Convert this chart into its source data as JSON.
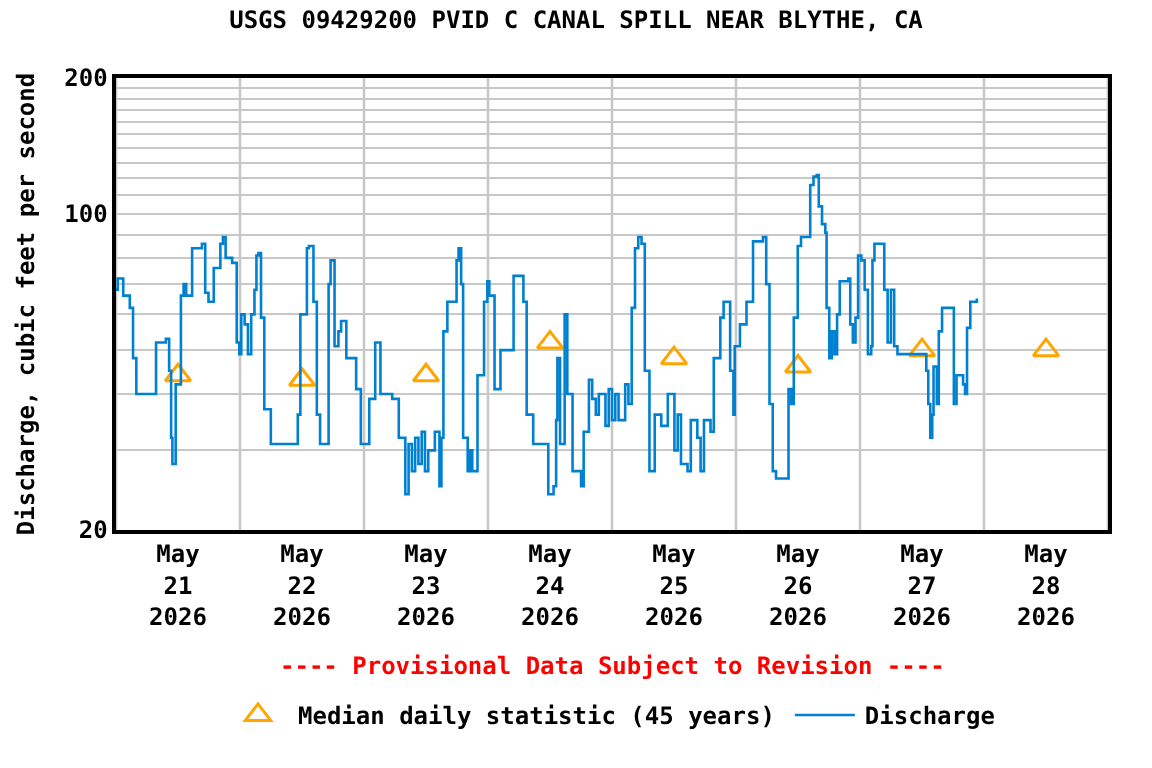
{
  "chart_data": {
    "type": "step",
    "title": "USGS 09429200 PVID C CANAL SPILL NEAR BLYTHE, CA",
    "ylabel": "Discharge, cubic feet per second",
    "log": "y",
    "grid": true,
    "legend": "bottom",
    "xlim": [
      "2026-05-21T00:00",
      "2026-05-29T00:00"
    ],
    "xticks": [
      {
        "value": "2026-05-21T00:00",
        "label": null
      },
      {
        "value": "2026-05-21T12:00",
        "label": "May\n21\n2026"
      },
      {
        "value": "2026-05-22T00:00",
        "label": null
      },
      {
        "value": "2026-05-22T12:00",
        "label": "May\n22\n2026"
      },
      {
        "value": "2026-05-23T00:00",
        "label": null
      },
      {
        "value": "2026-05-23T12:00",
        "label": "May\n23\n2026"
      },
      {
        "value": "2026-05-24T00:00",
        "label": null
      },
      {
        "value": "2026-05-24T12:00",
        "label": "May\n24\n2026"
      },
      {
        "value": "2026-05-25T00:00",
        "label": null
      },
      {
        "value": "2026-05-25T12:00",
        "label": "May\n25\n2026"
      },
      {
        "value": "2026-05-26T00:00",
        "label": null
      },
      {
        "value": "2026-05-26T12:00",
        "label": "May\n26\n2026"
      },
      {
        "value": "2026-05-27T00:00",
        "label": null
      },
      {
        "value": "2026-05-27T12:00",
        "label": "May\n27\n2026"
      },
      {
        "value": "2026-05-28T00:00",
        "label": null
      },
      {
        "value": "2026-05-28T12:00",
        "label": "May\n28\n2026"
      },
      {
        "value": "2026-05-29T00:00",
        "label": null
      }
    ],
    "ylim": [
      20,
      200
    ],
    "yticks": [
      20,
      {
        "value": 30,
        "label": null
      },
      {
        "value": 40,
        "label": null
      },
      {
        "value": 50,
        "label": null
      },
      {
        "value": 60,
        "label": null
      },
      {
        "value": 70,
        "label": null
      },
      {
        "value": 80,
        "label": null
      },
      {
        "value": 90,
        "label": null
      },
      100,
      {
        "value": 110,
        "label": null
      },
      {
        "value": 120,
        "label": null
      },
      {
        "value": 130,
        "label": null
      },
      {
        "value": 140,
        "label": null
      },
      {
        "value": 150,
        "label": null
      },
      {
        "value": 160,
        "label": null
      },
      {
        "value": 170,
        "label": null
      },
      {
        "value": 180,
        "label": null
      },
      {
        "value": 190,
        "label": null
      },
      200
    ],
    "annotations": [
      "---- Provisional Data Subject to Revision ----"
    ],
    "series": [
      {
        "name": "Median daily statistic (45 years)",
        "type": "scatter",
        "marker": "triangle",
        "color": "#ffa500",
        "x": [
          "2026-05-21T12:00",
          "2026-05-22T12:00",
          "2026-05-23T12:00",
          "2026-05-24T12:00",
          "2026-05-25T12:00",
          "2026-05-26T12:00",
          "2026-05-27T12:00",
          "2026-05-28T12:00"
        ],
        "values": [
          44,
          43,
          44,
          52,
          48,
          46,
          50,
          50
        ]
      },
      {
        "name": "Discharge",
        "color": "#0080d0",
        "line_style": "solid",
        "x": [
          "2026-05-21T00:00",
          "2026-05-21T00:20",
          "2026-05-21T01:24",
          "2026-05-21T02:40",
          "2026-05-21T03:18",
          "2026-05-21T03:56",
          "2026-05-21T06:44",
          "2026-05-21T07:45",
          "2026-05-21T09:39",
          "2026-05-21T10:17",
          "2026-05-21T10:40",
          "2026-05-21T10:55",
          "2026-05-21T11:33",
          "2026-05-21T12:34",
          "2026-05-21T13:05",
          "2026-05-21T13:35",
          "2026-05-21T14:44",
          "2026-05-21T16:38",
          "2026-05-21T17:16",
          "2026-05-21T17:54",
          "2026-05-21T18:55",
          "2026-05-21T20:12",
          "2026-05-21T20:42",
          "2026-05-21T21:13",
          "2026-05-21T22:29",
          "2026-05-21T23:22",
          "2026-05-21T23:52",
          "2026-05-22T00:15",
          "2026-05-22T00:54",
          "2026-05-22T01:32",
          "2026-05-22T02:10",
          "2026-05-22T02:48",
          "2026-05-22T03:11",
          "2026-05-22T03:34",
          "2026-05-22T04:04",
          "2026-05-22T04:42",
          "2026-05-22T05:58",
          "2026-05-22T10:25",
          "2026-05-22T11:11",
          "2026-05-22T11:41",
          "2026-05-22T12:57",
          "2026-05-22T13:20",
          "2026-05-22T14:13",
          "2026-05-22T14:52",
          "2026-05-22T15:30",
          "2026-05-22T16:08",
          "2026-05-22T17:09",
          "2026-05-22T17:32",
          "2026-05-22T18:18",
          "2026-05-22T19:03",
          "2026-05-22T19:34",
          "2026-05-22T20:35",
          "2026-05-22T21:51",
          "2026-05-22T22:29",
          "2026-05-22T23:23",
          "2026-05-23T00:23",
          "2026-05-23T01:01",
          "2026-05-23T02:10",
          "2026-05-23T03:11",
          "2026-05-23T05:28",
          "2026-05-23T06:44",
          "2026-05-23T08:00",
          "2026-05-23T08:38",
          "2026-05-23T09:16",
          "2026-05-23T09:54",
          "2026-05-23T10:32",
          "2026-05-23T11:10",
          "2026-05-23T11:48",
          "2026-05-23T12:26",
          "2026-05-23T13:43",
          "2026-05-23T14:36",
          "2026-05-23T14:59",
          "2026-05-23T15:22",
          "2026-05-23T16:08",
          "2026-05-23T17:55",
          "2026-05-23T18:18",
          "2026-05-23T18:48",
          "2026-05-23T19:11",
          "2026-05-23T20:04",
          "2026-05-23T20:27",
          "2026-05-23T20:57",
          "2026-05-23T21:58",
          "2026-05-23T23:14",
          "2026-05-23T23:52",
          "2026-05-24T00:15",
          "2026-05-24T01:16",
          "2026-05-24T02:25",
          "2026-05-24T04:04",
          "2026-05-24T04:57",
          "2026-05-24T06:13",
          "2026-05-24T06:51",
          "2026-05-24T07:29",
          "2026-05-24T08:45",
          "2026-05-24T10:24",
          "2026-05-24T11:40",
          "2026-05-24T12:10",
          "2026-05-24T12:41",
          "2026-05-24T13:11",
          "2026-05-24T13:26",
          "2026-05-24T13:57",
          "2026-05-24T14:50",
          "2026-05-24T15:21",
          "2026-05-24T16:22",
          "2026-05-24T18:01",
          "2026-05-24T18:31",
          "2026-05-24T19:32",
          "2026-05-24T20:10",
          "2026-05-24T20:52",
          "2026-05-24T21:27",
          "2026-05-24T22:44",
          "2026-05-24T23:22",
          "2026-05-25T00:00",
          "2026-05-25T00:38",
          "2026-05-25T01:16",
          "2026-05-25T02:33",
          "2026-05-25T03:11",
          "2026-05-25T03:49",
          "2026-05-25T04:27",
          "2026-05-25T05:05",
          "2026-05-25T05:43",
          "2026-05-25T06:21",
          "2026-05-25T07:15",
          "2026-05-25T08:16",
          "2026-05-25T09:32",
          "2026-05-25T10:48",
          "2026-05-25T12:05",
          "2026-05-25T12:43",
          "2026-05-25T13:21",
          "2026-05-25T14:37",
          "2026-05-25T15:15",
          "2026-05-25T16:31",
          "2026-05-25T17:09",
          "2026-05-25T17:48",
          "2026-05-25T19:04",
          "2026-05-25T19:42",
          "2026-05-25T20:58",
          "2026-05-25T21:36",
          "2026-05-25T22:52",
          "2026-05-25T23:30",
          "2026-05-25T23:45",
          "2026-05-26T00:46",
          "2026-05-26T02:02",
          "2026-05-26T03:18",
          "2026-05-26T05:13",
          "2026-05-26T05:51",
          "2026-05-26T06:29",
          "2026-05-26T07:07",
          "2026-05-26T07:45",
          "2026-05-26T09:55",
          "2026-05-26T10:10",
          "2026-05-26T10:41",
          "2026-05-26T11:11",
          "2026-05-26T11:57",
          "2026-05-26T12:35",
          "2026-05-26T13:28",
          "2026-05-26T14:22",
          "2026-05-26T15:00",
          "2026-05-26T15:38",
          "2026-05-26T16:01",
          "2026-05-26T16:39",
          "2026-05-26T17:17",
          "2026-05-26T17:32",
          "2026-05-26T18:03",
          "2026-05-26T18:33",
          "2026-05-26T19:04",
          "2026-05-26T19:34",
          "2026-05-26T20:05",
          "2026-05-26T21:44",
          "2026-05-26T22:07",
          "2026-05-26T22:37",
          "2026-05-26T23:08",
          "2026-05-26T23:38",
          "2026-05-27T00:16",
          "2026-05-27T00:54",
          "2026-05-27T01:32",
          "2026-05-27T02:10",
          "2026-05-27T02:25",
          "2026-05-27T02:48",
          "2026-05-27T03:26",
          "2026-05-27T04:42",
          "2026-05-27T05:21",
          "2026-05-27T05:59",
          "2026-05-27T06:37",
          "2026-05-27T07:15",
          "2026-05-27T11:42",
          "2026-05-27T12:50",
          "2026-05-27T13:13",
          "2026-05-27T13:36",
          "2026-05-27T13:59",
          "2026-05-27T14:14",
          "2026-05-27T14:52",
          "2026-05-27T15:15",
          "2026-05-27T15:53",
          "2026-05-27T17:25",
          "2026-05-27T18:10",
          "2026-05-27T18:41",
          "2026-05-27T19:57",
          "2026-05-27T20:20",
          "2026-05-27T20:43",
          "2026-05-27T21:21",
          "2026-05-27T22:37"
        ],
        "values": [
          68,
          72,
          66,
          62,
          48,
          40,
          40,
          52,
          53,
          45,
          32,
          28,
          42,
          66,
          70,
          66,
          84,
          86,
          67,
          64,
          76,
          86,
          89,
          80,
          78,
          52,
          49,
          60,
          57,
          49,
          60,
          68,
          81,
          82,
          59,
          37,
          31,
          31,
          36,
          60,
          84,
          85,
          64,
          36,
          31,
          31,
          70,
          79,
          51,
          55,
          58,
          48,
          48,
          41,
          31,
          31,
          39,
          52,
          40,
          39,
          32,
          24,
          31,
          27,
          32,
          28,
          33,
          27,
          30,
          33,
          25,
          32,
          55,
          64,
          79,
          84,
          70,
          32,
          27,
          30,
          27,
          44,
          64,
          71,
          66,
          41,
          50,
          50,
          73,
          73,
          64,
          36,
          31,
          31,
          24,
          24,
          25,
          35,
          48,
          31,
          60,
          40,
          27,
          25,
          33,
          43,
          39,
          36,
          40,
          34,
          41,
          35,
          40,
          35,
          42,
          38,
          62,
          84,
          89,
          86,
          45,
          27,
          36,
          34,
          40,
          30,
          36,
          28,
          27,
          35,
          32,
          27,
          35,
          33,
          48,
          59,
          64,
          45,
          36,
          51,
          57,
          64,
          87,
          89,
          70,
          38,
          27,
          26,
          26,
          41,
          38,
          59,
          85,
          89,
          89,
          116,
          121,
          122,
          104,
          95,
          91,
          62,
          48,
          55,
          49,
          60,
          71,
          72,
          57,
          52,
          59,
          81,
          79,
          68,
          49,
          51,
          79,
          86,
          86,
          68,
          52,
          68,
          51,
          49,
          49,
          45,
          38,
          32,
          36,
          46,
          38,
          55,
          62,
          62,
          38,
          44,
          42,
          40,
          56,
          64,
          65
        ]
      }
    ]
  }
}
